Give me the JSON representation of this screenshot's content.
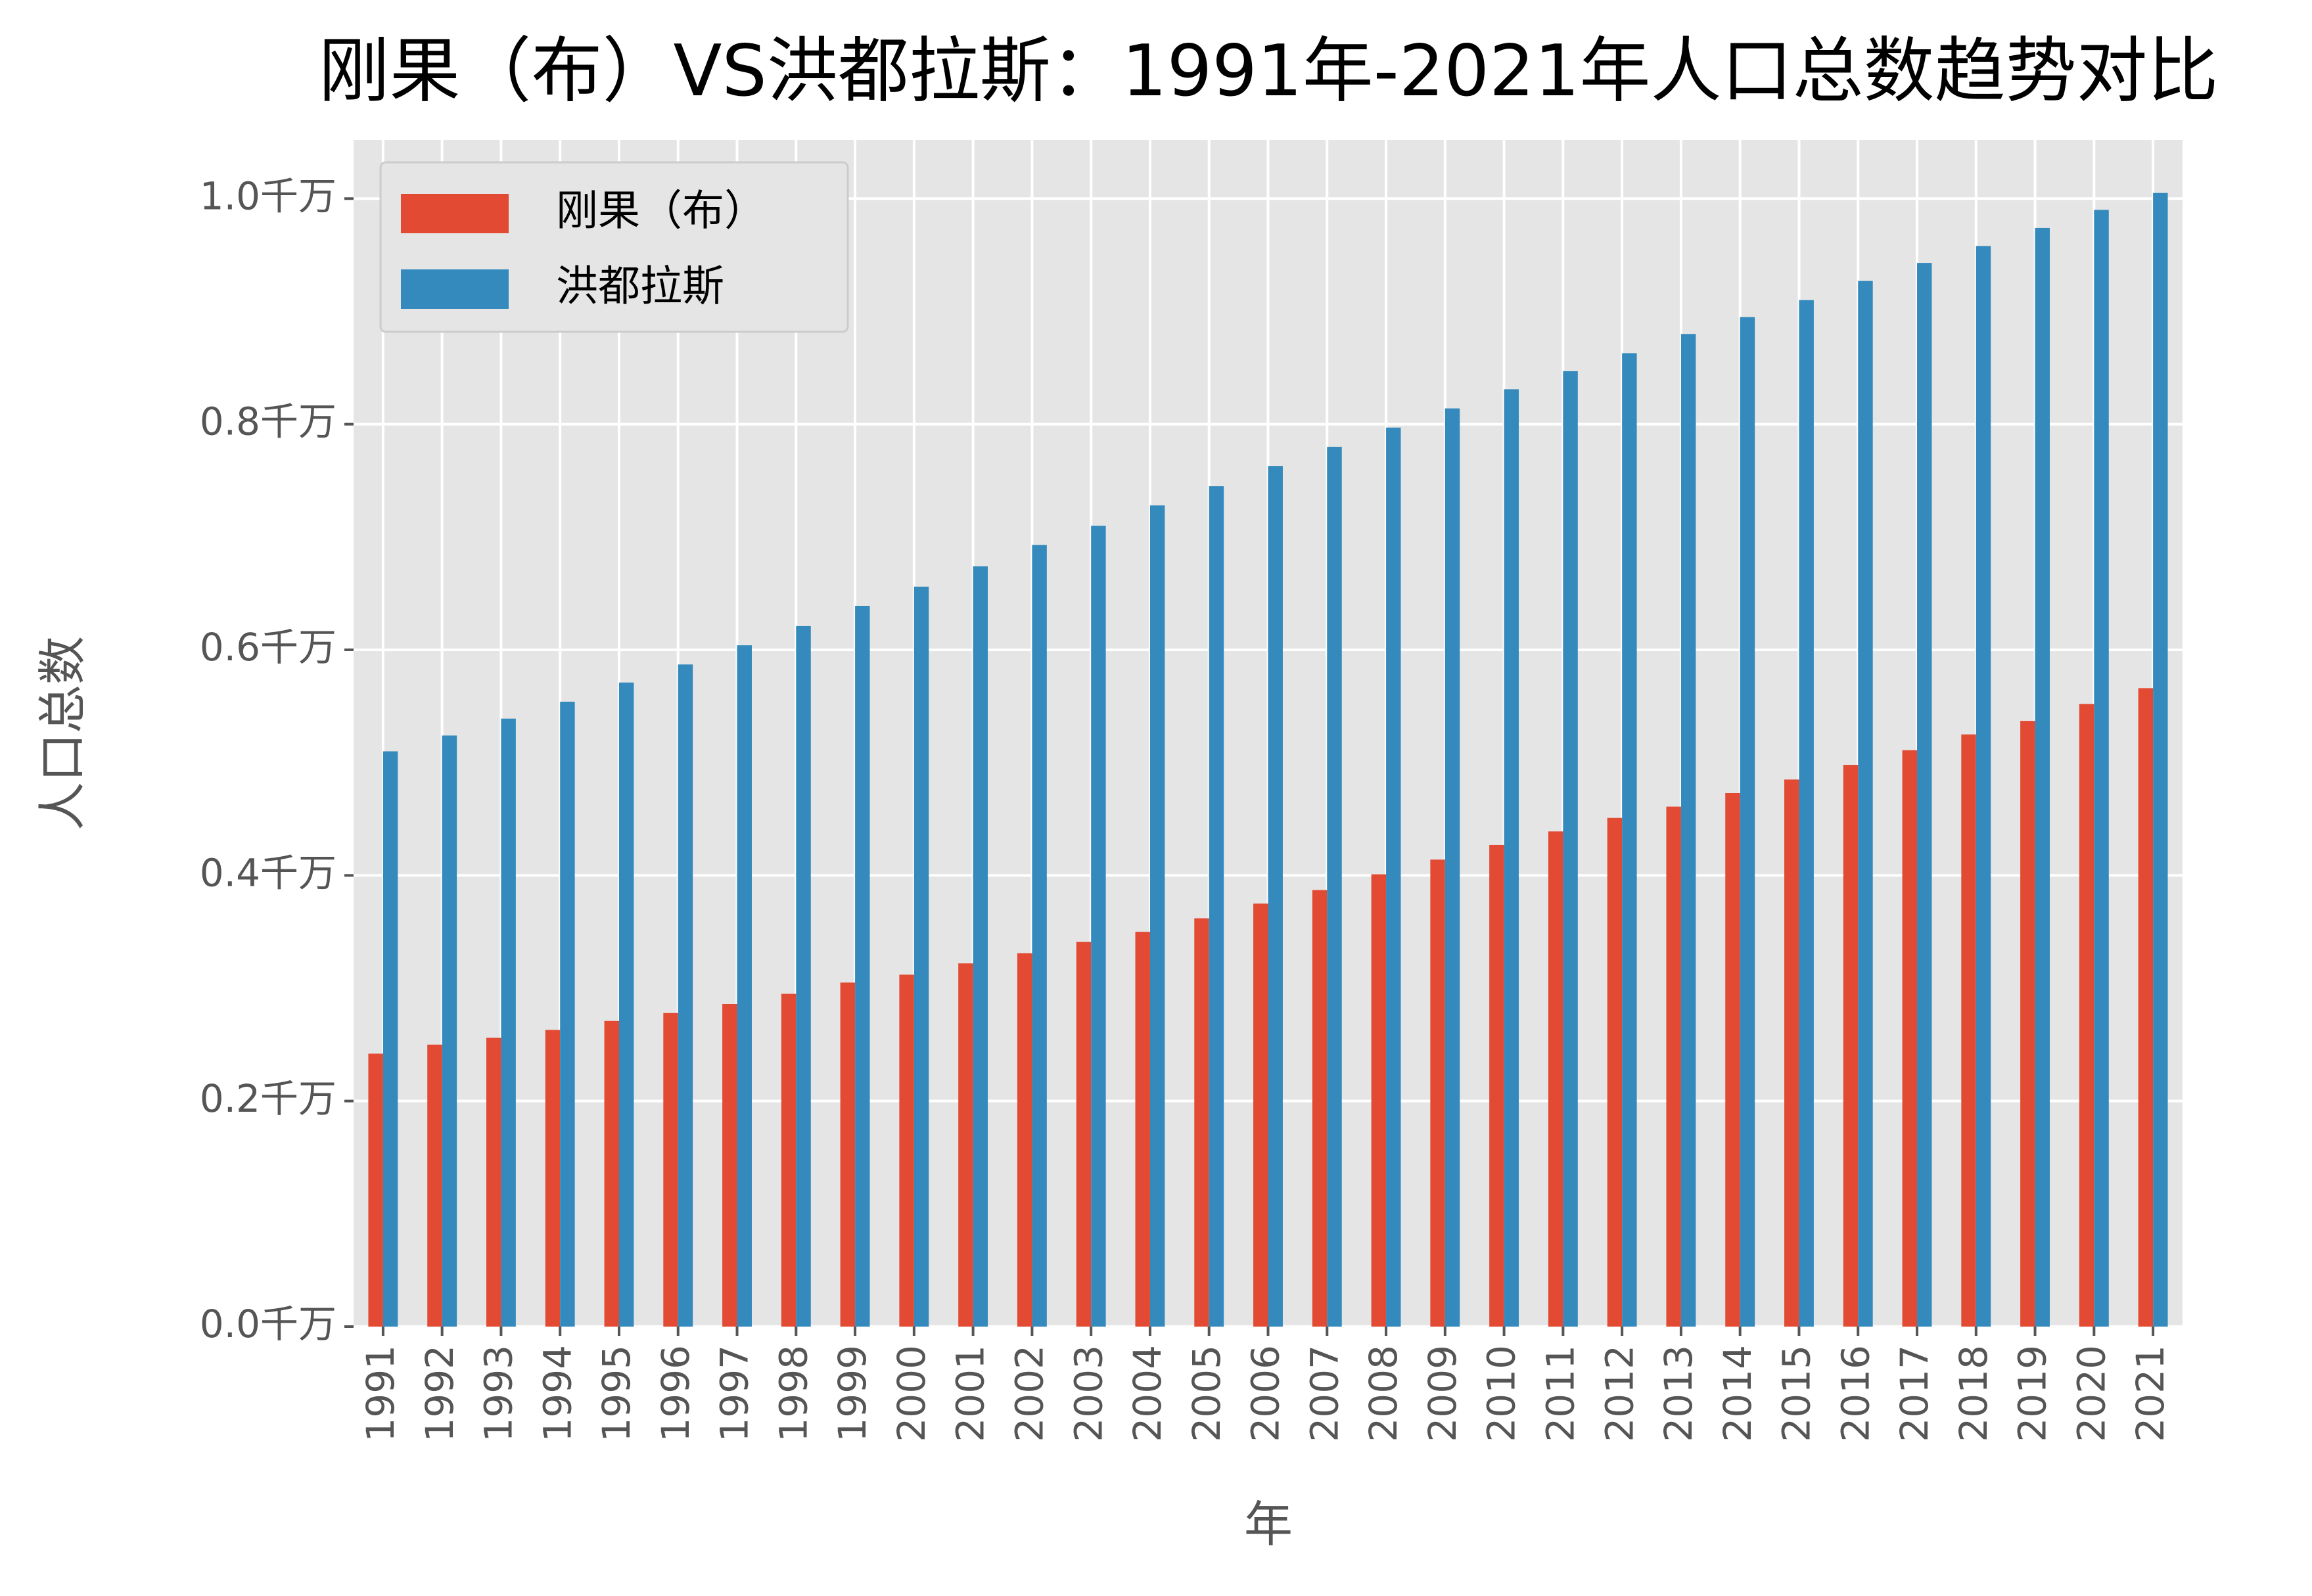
{
  "chart_data": {
    "type": "bar",
    "title": "刚果（布）VS洪都拉斯：1991年-2021年人口总数趋势对比",
    "x_label": "年",
    "y_label": "人口总数",
    "categories": [
      "1991",
      "1992",
      "1993",
      "1994",
      "1995",
      "1996",
      "1997",
      "1998",
      "1999",
      "2000",
      "2001",
      "2002",
      "2003",
      "2004",
      "2005",
      "2006",
      "2007",
      "2008",
      "2009",
      "2010",
      "2011",
      "2012",
      "2013",
      "2014",
      "2015",
      "2016",
      "2017",
      "2018",
      "2019",
      "2020",
      "2021"
    ],
    "series": [
      {
        "name": "刚果（布）",
        "color": "#E24A33",
        "values": [
          0.242,
          0.25,
          0.256,
          0.263,
          0.271,
          0.278,
          0.286,
          0.295,
          0.305,
          0.312,
          0.322,
          0.331,
          0.341,
          0.35,
          0.362,
          0.375,
          0.387,
          0.401,
          0.414,
          0.427,
          0.439,
          0.451,
          0.461,
          0.473,
          0.485,
          0.498,
          0.511,
          0.525,
          0.537,
          0.552,
          0.566
        ]
      },
      {
        "name": "洪都拉斯",
        "color": "#348ABD",
        "values": [
          0.51,
          0.524,
          0.539,
          0.554,
          0.571,
          0.587,
          0.604,
          0.621,
          0.639,
          0.656,
          0.674,
          0.693,
          0.71,
          0.728,
          0.745,
          0.763,
          0.78,
          0.797,
          0.814,
          0.831,
          0.847,
          0.863,
          0.88,
          0.895,
          0.91,
          0.927,
          0.943,
          0.958,
          0.974,
          0.99,
          1.005
        ]
      }
    ],
    "ylim": [
      0,
      1.052
    ],
    "yticks": [
      {
        "value": 0,
        "label": "0.0千万"
      },
      {
        "value": 0.2,
        "label": "0.2千万"
      },
      {
        "value": 0.4,
        "label": "0.4千万"
      },
      {
        "value": 0.6,
        "label": "0.6千万"
      },
      {
        "value": 0.8,
        "label": "0.8千万"
      },
      {
        "value": 1.0,
        "label": "1.0千万"
      }
    ],
    "grid": true,
    "legend": "upper-left"
  }
}
